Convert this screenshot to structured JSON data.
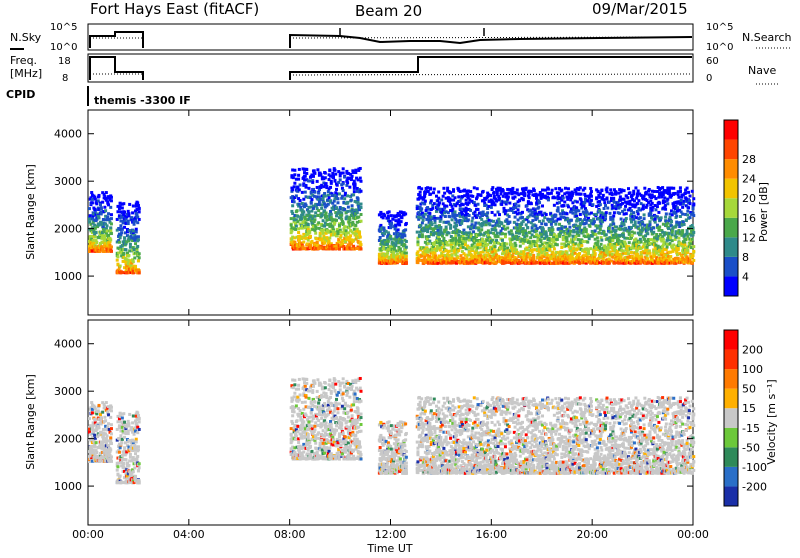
{
  "header": {
    "station": "Fort Hays East (fitACF)",
    "beam": "Beam 20",
    "date": "09/Mar/2015"
  },
  "panels": {
    "nsky": {
      "left_label": "N.Sky",
      "left_ticks": [
        "10^5",
        "10^0"
      ],
      "right_label": "N.Search",
      "right_ticks": [
        "10^5",
        "10^0"
      ]
    },
    "freq": {
      "left_label_1": "Freq.",
      "left_label_2": "[MHz]",
      "left_ticks": [
        "18",
        "8"
      ],
      "right_label": "Nave",
      "right_ticks": [
        "60",
        "0"
      ]
    },
    "cpid": {
      "label": "CPID",
      "text": "themis -3300 IF"
    }
  },
  "chart_data": [
    {
      "type": "heatmap",
      "title": "",
      "ylabel": "Slant Range [km]",
      "xlabel": "",
      "yticks": [
        1000,
        2000,
        3000,
        4000
      ],
      "ylim": [
        180,
        4500
      ],
      "xlim": [
        0,
        24
      ],
      "colorbar": {
        "label": "Power [dB]",
        "ticks": [
          "4",
          "8",
          "12",
          "16",
          "20",
          "24",
          "28"
        ],
        "colors": [
          "#0000ff",
          "#1a4fc8",
          "#2f8a8a",
          "#4aa84a",
          "#a6d83a",
          "#f2c400",
          "#ff8c00",
          "#ff4500",
          "#ff0000"
        ]
      },
      "series": [
        {
          "t_start": 0.0,
          "t_end": 0.9,
          "r_low": 1550,
          "r_high": 2800,
          "level": "high"
        },
        {
          "t_start": 1.1,
          "t_end": 2.0,
          "r_low": 1100,
          "r_high": 2600,
          "level": "high"
        },
        {
          "t_start": 8.0,
          "t_end": 10.8,
          "r_low": 1600,
          "r_high": 3300,
          "level": "high"
        },
        {
          "t_start": 11.5,
          "t_end": 12.6,
          "r_low": 1300,
          "r_high": 2400,
          "level": "high"
        },
        {
          "t_start": 13.0,
          "t_end": 24.0,
          "r_low": 1300,
          "r_high": 2900,
          "level": "high"
        }
      ]
    },
    {
      "type": "heatmap",
      "title": "",
      "ylabel": "Slant Range [km]",
      "xlabel": "Time UT",
      "xticks": [
        "00:00",
        "04:00",
        "08:00",
        "12:00",
        "16:00",
        "20:00",
        "00:00"
      ],
      "yticks": [
        1000,
        2000,
        3000,
        4000
      ],
      "ylim": [
        180,
        4500
      ],
      "xlim": [
        0,
        24
      ],
      "colorbar": {
        "label": "Velocity [m s⁻¹]",
        "ticks": [
          "200",
          "100",
          "50",
          "15",
          "-15",
          "-50",
          "-100",
          "-200"
        ],
        "colors": [
          "#1a2fa8",
          "#2a6fc8",
          "#2f8a5a",
          "#6cc83a",
          "#c8c8c8",
          "#ffb000",
          "#ff7a00",
          "#ff3000",
          "#ff0000"
        ]
      }
    }
  ]
}
